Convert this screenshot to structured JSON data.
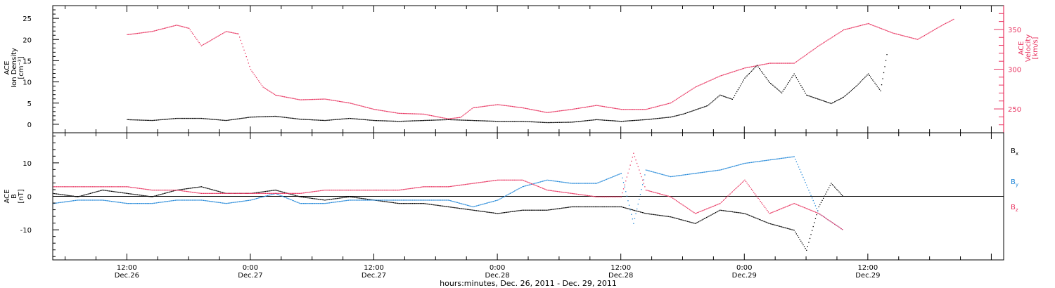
{
  "chart_data": [
    {
      "type": "scatter",
      "panel": "top",
      "ylabel_lines": [
        "ACE",
        "Ion Density",
        "[cm⁻³]"
      ],
      "y2label_lines": [
        "ACE",
        "Velocity",
        "[km/s]"
      ],
      "ylim": [
        -2,
        28
      ],
      "y2lim": [
        220,
        380
      ],
      "yticks": [
        0,
        5,
        10,
        15,
        20,
        25
      ],
      "y2ticks": [
        250,
        300,
        350
      ],
      "y_color": "#000000",
      "y2_color": "#e8325f",
      "series": [
        {
          "axis": "left",
          "color": "#000000",
          "x": [
            0,
            0.1,
            0.2,
            0.3,
            0.4,
            0.5,
            0.6,
            0.7,
            0.8,
            0.9,
            1.0,
            1.1,
            1.2,
            1.3,
            1.4,
            1.5,
            1.6,
            1.7,
            1.8,
            1.9,
            1.95,
            2.0,
            2.05,
            2.1,
            2.15,
            2.2,
            2.25,
            2.3,
            2.35,
            2.4,
            2.45,
            2.5,
            2.55,
            2.6,
            2.65,
            2.7,
            2.75,
            2.8,
            2.85,
            2.9,
            2.95,
            3.0,
            3.05,
            3.08
          ],
          "values": [
            1.2,
            1.0,
            1.5,
            1.5,
            1.0,
            1.8,
            2.0,
            1.3,
            1.0,
            1.5,
            1.0,
            0.8,
            1.0,
            1.2,
            1.0,
            0.8,
            0.8,
            0.5,
            0.6,
            1.2,
            1.0,
            0.8,
            1.0,
            1.2,
            1.5,
            1.8,
            2.5,
            3.5,
            4.5,
            7.0,
            6.0,
            11.0,
            14.0,
            10.0,
            7.5,
            12.0,
            7.0,
            6.0,
            5.0,
            6.5,
            9.0,
            12.0,
            8.0,
            18.0
          ]
        },
        {
          "axis": "right",
          "color": "#e8325f",
          "x": [
            0,
            0.1,
            0.2,
            0.25,
            0.3,
            0.4,
            0.45,
            0.5,
            0.55,
            0.6,
            0.7,
            0.8,
            0.9,
            1.0,
            1.1,
            1.2,
            1.3,
            1.35,
            1.4,
            1.5,
            1.6,
            1.7,
            1.8,
            1.9,
            2.0,
            2.1,
            2.2,
            2.3,
            2.4,
            2.5,
            2.6,
            2.7,
            2.8,
            2.9,
            3.0,
            3.1,
            3.2,
            3.3,
            3.35
          ],
          "values": [
            344,
            348,
            356,
            352,
            330,
            348,
            345,
            300,
            278,
            268,
            262,
            263,
            258,
            250,
            245,
            244,
            238,
            240,
            252,
            256,
            252,
            246,
            250,
            255,
            250,
            250,
            258,
            278,
            292,
            302,
            308,
            308,
            330,
            350,
            358,
            346,
            338,
            356,
            364
          ]
        }
      ]
    },
    {
      "type": "scatter",
      "panel": "bottom",
      "ylabel_lines": [
        "ACE",
        "B",
        "[nT]"
      ],
      "ylim": [
        -19,
        19
      ],
      "yticks": [
        -10,
        0,
        10
      ],
      "xlabel": "hours:minutes, Dec. 26, 2011 - Dec. 29, 2011",
      "xlim": [
        -0.3,
        3.55
      ],
      "xticks": [
        {
          "pos": 0,
          "line1": "12:00",
          "line2": "Dec.26"
        },
        {
          "pos": 0.5,
          "line1": "0:00",
          "line2": "Dec.27"
        },
        {
          "pos": 1.0,
          "line1": "12:00",
          "line2": "Dec.27"
        },
        {
          "pos": 1.5,
          "line1": "0:00",
          "line2": "Dec.28"
        },
        {
          "pos": 2.0,
          "line1": "12:00",
          "line2": "Dec.28"
        },
        {
          "pos": 2.5,
          "line1": "0:00",
          "line2": "Dec.29"
        },
        {
          "pos": 3.0,
          "line1": "12:00",
          "line2": "Dec.29"
        }
      ],
      "series": [
        {
          "name": "Bx",
          "label_main": "B",
          "label_sub": "x",
          "color": "#000000",
          "x": [
            -0.3,
            -0.2,
            -0.1,
            0.0,
            0.1,
            0.2,
            0.3,
            0.4,
            0.5,
            0.6,
            0.7,
            0.8,
            0.9,
            1.0,
            1.1,
            1.2,
            1.3,
            1.4,
            1.5,
            1.6,
            1.7,
            1.8,
            1.9,
            2.0,
            2.1,
            2.2,
            2.3,
            2.4,
            2.5,
            2.6,
            2.7,
            2.75,
            2.8,
            2.85,
            2.9
          ],
          "values": [
            1,
            0,
            2,
            1,
            0,
            2,
            3,
            1,
            1,
            2,
            0,
            -1,
            0,
            -1,
            -2,
            -2,
            -3,
            -4,
            -5,
            -4,
            -4,
            -3,
            -3,
            -3,
            -5,
            -6,
            -8,
            -4,
            -5,
            -8,
            -10,
            -16,
            -3,
            4,
            0
          ]
        },
        {
          "name": "By",
          "label_main": "B",
          "label_sub": "y",
          "color": "#1f86d8",
          "x": [
            -0.3,
            -0.2,
            -0.1,
            0.0,
            0.1,
            0.2,
            0.3,
            0.4,
            0.5,
            0.6,
            0.7,
            0.8,
            0.9,
            1.0,
            1.1,
            1.2,
            1.3,
            1.4,
            1.5,
            1.6,
            1.7,
            1.8,
            1.9,
            2.0,
            2.05,
            2.1,
            2.2,
            2.3,
            2.4,
            2.5,
            2.6,
            2.7,
            2.8,
            2.9
          ],
          "values": [
            -2,
            -1,
            -1,
            -2,
            -2,
            -1,
            -1,
            -2,
            -1,
            1,
            -2,
            -2,
            -1,
            -1,
            -1,
            -1,
            -1,
            -3,
            -1,
            3,
            5,
            4,
            4,
            7,
            -8,
            8,
            6,
            7,
            8,
            10,
            11,
            12,
            -5,
            -10
          ]
        },
        {
          "name": "Bz",
          "label_main": "B",
          "label_sub": "z",
          "color": "#e8325f",
          "x": [
            -0.3,
            -0.2,
            -0.1,
            0.0,
            0.1,
            0.2,
            0.3,
            0.4,
            0.5,
            0.6,
            0.7,
            0.8,
            0.9,
            1.0,
            1.1,
            1.2,
            1.3,
            1.4,
            1.5,
            1.6,
            1.7,
            1.8,
            1.9,
            2.0,
            2.05,
            2.1,
            2.2,
            2.3,
            2.4,
            2.5,
            2.6,
            2.7,
            2.8,
            2.9
          ],
          "values": [
            3,
            3,
            3,
            3,
            2,
            2,
            1,
            1,
            1,
            1,
            1,
            2,
            2,
            2,
            2,
            3,
            3,
            4,
            5,
            5,
            2,
            1,
            0,
            0,
            13,
            2,
            0,
            -5,
            -2,
            5,
            -5,
            -2,
            -5,
            -10
          ]
        }
      ]
    }
  ]
}
